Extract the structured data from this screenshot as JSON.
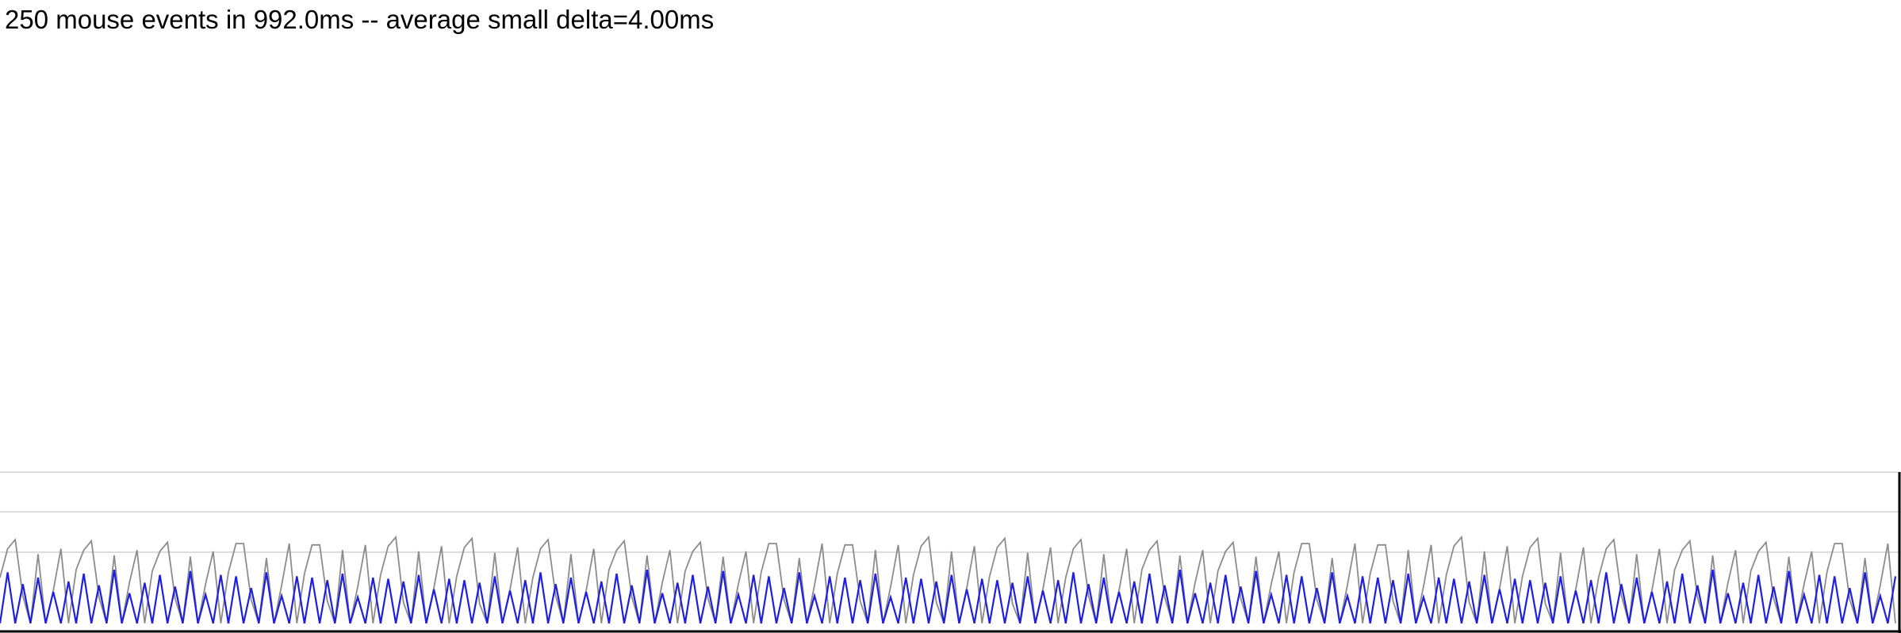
{
  "stats_text": "250 mouse events in 992.0ms -- average small delta=4.00ms",
  "colors": {
    "background": "#ffffff",
    "gridline": "#dddddd",
    "border": "#000000",
    "series_gray": "#8c8c8c",
    "series_blue": "#1f1fe0"
  },
  "chart_data": {
    "type": "line",
    "title": "",
    "xlabel": "",
    "ylabel": "",
    "grid": true,
    "legend": "none",
    "series": [
      {
        "color": "#8c8c8c",
        "pattern": [
          0.4,
          0.6,
          0.65,
          0.2,
          0.05,
          0.55,
          0.05,
          0.3,
          0.6,
          0.05
        ]
      },
      {
        "color": "#1f1fe0",
        "pattern": [
          0.05,
          0.38,
          0.05,
          0.32,
          0.05,
          0.4,
          0.05,
          0.25,
          0.05,
          0.36
        ]
      }
    ]
  }
}
